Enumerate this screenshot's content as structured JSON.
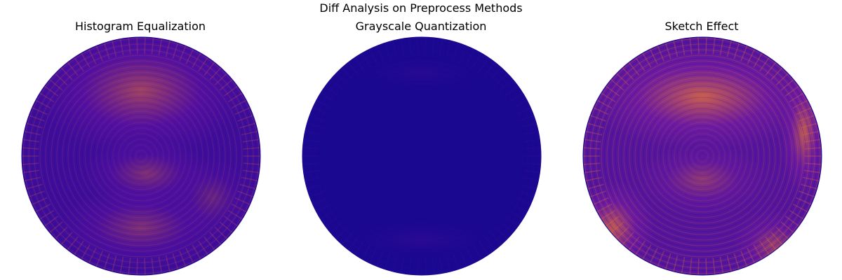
{
  "figure": {
    "title": "Diff Analysis on Preprocess Methods"
  },
  "chart_data": [
    {
      "type": "heatmap",
      "projection": "polar-disk",
      "title": "Histogram Equalization",
      "colormap": "plasma",
      "axes_visible": false,
      "intensity_level": 0.32,
      "colors": {
        "low": "#1a0890",
        "mid": "#6a13a6",
        "high": "#e0663e"
      }
    },
    {
      "type": "heatmap",
      "projection": "polar-disk",
      "title": "Grayscale Quantization",
      "colormap": "plasma",
      "axes_visible": false,
      "intensity_level": 0.06,
      "colors": {
        "low": "#1a0890",
        "mid": "#2c0894",
        "high": "#6a13a6"
      }
    },
    {
      "type": "heatmap",
      "projection": "polar-disk",
      "title": "Sketch Effect",
      "colormap": "plasma",
      "axes_visible": false,
      "intensity_level": 0.45,
      "colors": {
        "low": "#1a0890",
        "mid": "#7a1ea2",
        "high": "#e5713a"
      }
    }
  ]
}
